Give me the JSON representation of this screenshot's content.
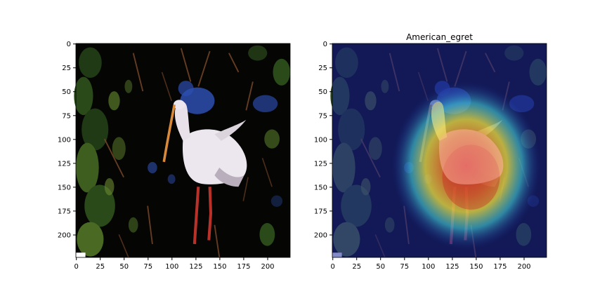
{
  "figure": {
    "background": "#ffffff",
    "panels": [
      {
        "title": "",
        "content": "photo",
        "xticks": [
          "0",
          "25",
          "50",
          "75",
          "100",
          "125",
          "150",
          "175",
          "200"
        ],
        "yticks": [
          "0",
          "25",
          "50",
          "75",
          "100",
          "125",
          "150",
          "175",
          "200"
        ]
      },
      {
        "title": "American_egret",
        "content": "photo-with-heatmap-overlay",
        "xticks": [
          "0",
          "25",
          "50",
          "75",
          "100",
          "125",
          "150",
          "175",
          "200"
        ],
        "yticks": [
          "0",
          "25",
          "50",
          "75",
          "100",
          "125",
          "150",
          "175",
          "200"
        ]
      }
    ]
  },
  "colors": {
    "photo_background": "#050504",
    "foliage_dark": "#1f3a14",
    "foliage_light": "#5a7a2a",
    "stem_brown": "#7a4a2a",
    "bird_white": "#ece6ee",
    "bird_shadow": "#b9aebb",
    "beak_orange": "#d88a3a",
    "legs_red": "#b8322a",
    "blue_patch": "#2d4fb0",
    "heat_overlay_base": "#1e2a9a",
    "heat_red": "#e8312a",
    "heat_yellow": "#f3e23a",
    "heat_cyan": "#42d0d6"
  }
}
